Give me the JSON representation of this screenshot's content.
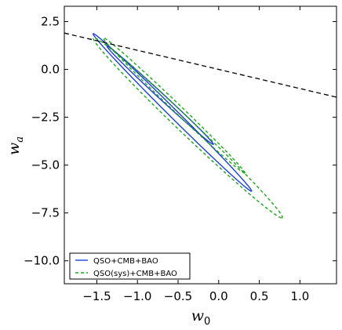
{
  "chart_data": {
    "type": "line",
    "title": "",
    "xlabel": "w",
    "xlabel_sub": "0",
    "ylabel": "w",
    "ylabel_sub": "a",
    "xlim": [
      -1.9,
      1.45
    ],
    "ylim": [
      -11.2,
      3.3
    ],
    "xticks": [
      -1.5,
      -1.0,
      -0.5,
      0.0,
      0.5,
      1.0
    ],
    "xtick_labels": [
      "−1.5",
      "−1.0",
      "−0.5",
      "0.0",
      "0.5",
      "1.0"
    ],
    "yticks": [
      2.5,
      0.0,
      -2.5,
      -5.0,
      -7.5,
      -10.0
    ],
    "ytick_labels": [
      "2.5",
      "0.0",
      "−2.5",
      "−5.0",
      "−7.5",
      "−10.0"
    ],
    "grid": false,
    "legend_position": "lower-left",
    "series": [
      {
        "name": "QSO+CMB+BAO",
        "color": "#1f3fd6",
        "style": "solid",
        "contours": [
          {
            "center": [
              -0.57,
              -2.25
            ],
            "major_semi_axis": 4.23,
            "minor_semi_axis": 0.07,
            "slope": -4.23
          },
          {
            "center": [
              -0.72,
              -1.35
            ],
            "major_semi_axis": 2.65,
            "minor_semi_axis": 0.05,
            "slope": -3.93
          }
        ]
      },
      {
        "name": "QSO(sys)+CMB+BAO",
        "color": "#1aa81a",
        "style": "dashed",
        "contours": [
          {
            "center": [
              -0.38,
              -3.05
            ],
            "major_semi_axis": 4.85,
            "minor_semi_axis": 0.13,
            "slope": -4.07
          },
          {
            "center": [
              -0.55,
              -1.88
            ],
            "major_semi_axis": 3.64,
            "minor_semi_axis": 0.07,
            "slope": -4.07
          }
        ]
      }
    ],
    "reference_line": {
      "style": "dashed",
      "color": "#000000",
      "x": [
        -1.9,
        1.45
      ],
      "y": [
        1.9,
        -1.45
      ]
    }
  }
}
